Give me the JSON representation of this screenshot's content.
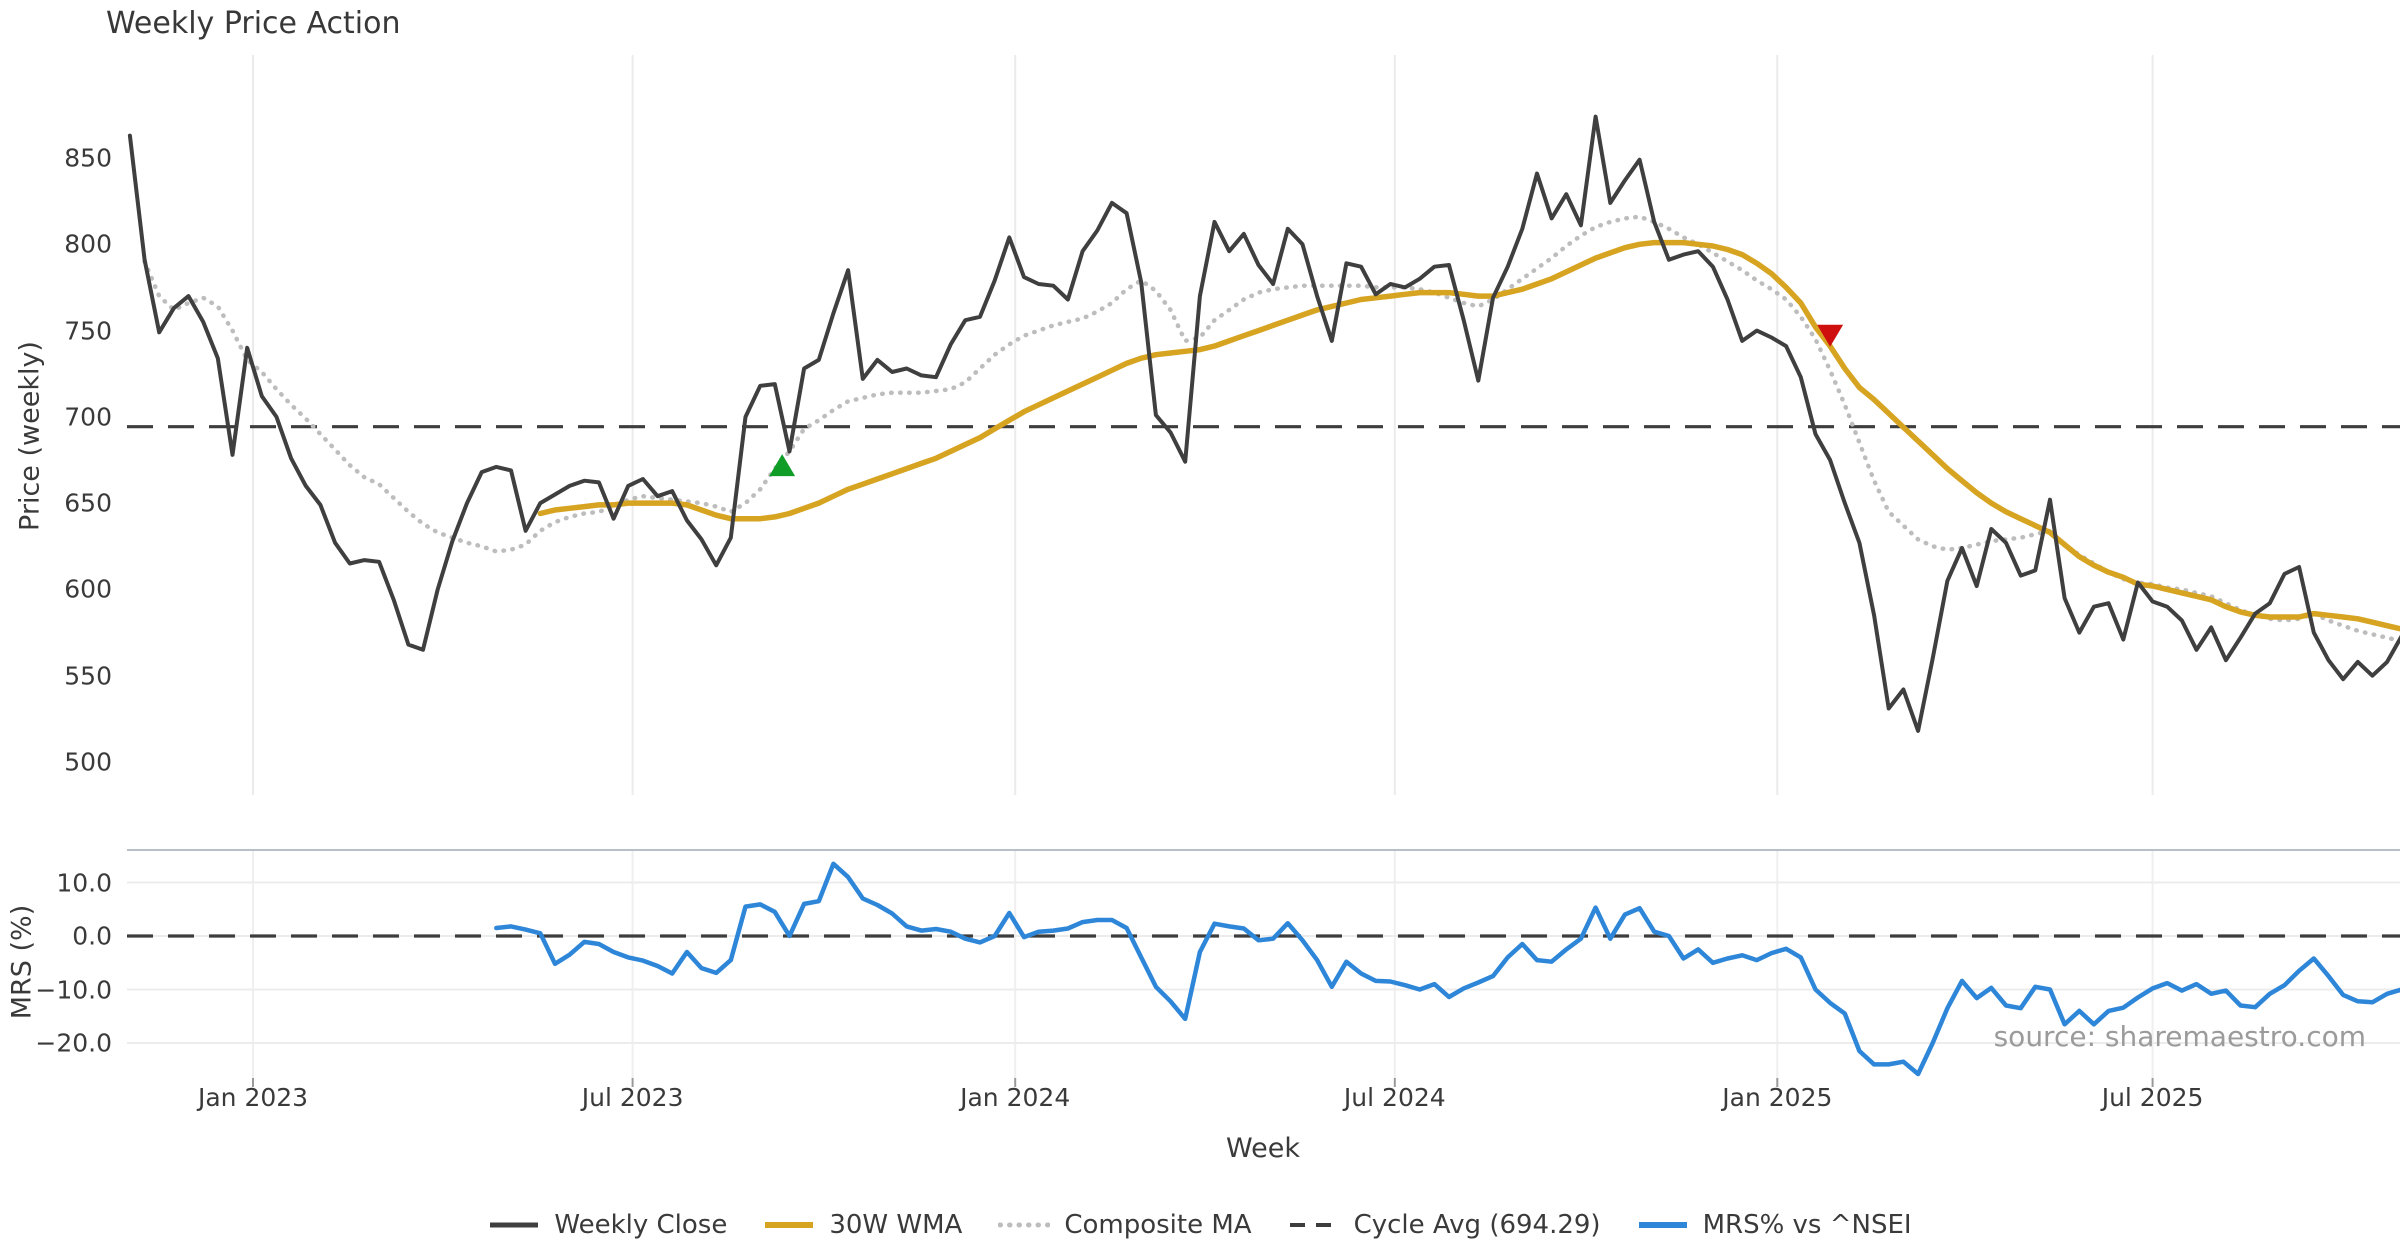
{
  "title": "Weekly Price Action",
  "source": "source: sharemaestro.com",
  "legend": {
    "items": [
      {
        "label": "Weekly Close",
        "style": "solid",
        "color": "#3f3f3f",
        "width": 5
      },
      {
        "label": "30W WMA",
        "style": "solid",
        "color": "#d7a422",
        "width": 6
      },
      {
        "label": "Composite MA",
        "style": "dotted",
        "color": "#bdbdbd",
        "width": 5
      },
      {
        "label": "Cycle Avg (694.29)",
        "style": "dashed",
        "color": "#3d3d3d",
        "width": 4
      },
      {
        "label": "MRS% vs ^NSEI",
        "style": "solid",
        "color": "#2e86d9",
        "width": 6
      }
    ]
  },
  "chart_data": {
    "type": "line",
    "x_unit": "week_index_from_2022-11-01",
    "xlabel": "Week",
    "grid": true,
    "legend_position": "bottom center",
    "x_ticks": [
      {
        "label": "Jan 2023",
        "week": 8.4
      },
      {
        "label": "Jul 2023",
        "week": 34.3
      },
      {
        "label": "Jan 2024",
        "week": 60.4
      },
      {
        "label": "Jul 2024",
        "week": 86.3
      },
      {
        "label": "Jan 2025",
        "week": 112.4
      },
      {
        "label": "Jul 2025",
        "week": 138.0
      }
    ],
    "price_panel": {
      "ylabel": "Price (weekly)",
      "yticks": [
        850,
        800,
        750,
        700,
        650,
        600,
        550,
        500
      ],
      "ylim": [
        495,
        880
      ],
      "cycle_avg": 694.29,
      "series": [
        {
          "id": "weekly_close",
          "name": "Weekly Close",
          "color": "#3f3f3f",
          "style": "solid",
          "start_week": 0,
          "values": [
            863,
            791,
            749,
            763,
            770,
            755,
            734,
            678,
            740,
            712,
            700,
            676,
            660,
            649,
            627,
            615,
            617,
            616,
            594,
            568,
            565,
            600,
            628,
            650,
            668,
            671,
            669,
            634,
            650,
            655,
            660,
            663,
            662,
            641,
            660,
            664,
            654,
            657,
            640,
            629,
            614,
            630,
            700,
            718,
            719,
            680,
            728,
            733,
            760,
            785,
            722,
            733,
            726,
            728,
            724,
            723,
            742,
            756,
            758,
            779,
            804,
            781,
            777,
            776,
            768,
            796,
            808,
            824,
            818,
            778,
            701,
            691,
            674,
            770,
            813,
            796,
            806,
            788,
            777,
            809,
            800,
            770,
            744,
            789,
            787,
            771,
            777,
            775,
            780,
            787,
            788,
            756,
            721,
            769,
            787,
            809,
            841,
            815,
            829,
            811,
            874,
            824,
            837,
            849,
            813,
            791,
            794,
            796,
            787,
            768,
            744,
            750,
            746,
            741,
            723,
            690,
            675,
            650,
            627,
            585,
            531,
            542,
            518,
            560,
            605,
            624,
            602,
            635,
            627,
            608,
            611,
            652,
            595,
            575,
            590,
            592,
            571,
            604,
            593,
            590,
            582,
            565,
            578,
            559,
            572,
            586,
            592,
            609,
            613,
            575,
            559,
            548,
            558,
            550,
            558,
            573
          ]
        },
        {
          "id": "wma30",
          "name": "30W WMA",
          "color": "#d7a422",
          "style": "solid",
          "start_week": 28,
          "values": [
            644,
            646,
            647,
            648,
            649,
            649,
            650,
            650,
            650,
            650,
            649,
            646,
            643,
            641,
            641,
            641,
            642,
            644,
            647,
            650,
            654,
            658,
            661,
            664,
            667,
            670,
            673,
            676,
            680,
            684,
            688,
            693,
            698,
            703,
            707,
            711,
            715,
            719,
            723,
            727,
            731,
            734,
            736,
            737,
            738,
            739,
            741,
            744,
            747,
            750,
            753,
            756,
            759,
            762,
            764,
            766,
            768,
            769,
            770,
            771,
            772,
            772,
            772,
            771,
            770,
            770,
            772,
            774,
            777,
            780,
            784,
            788,
            792,
            795,
            798,
            800,
            801,
            801,
            801,
            800,
            799,
            797,
            794,
            789,
            783,
            775,
            766,
            752,
            741,
            728,
            717,
            710,
            702,
            694,
            686,
            678,
            670,
            663,
            656,
            650,
            645,
            641,
            637,
            633,
            626,
            619,
            614,
            610,
            607,
            603,
            602,
            600,
            598,
            596,
            594,
            590,
            587,
            585,
            584,
            584,
            584,
            586,
            585,
            584,
            583,
            581,
            579,
            577
          ]
        },
        {
          "id": "composite_ma",
          "name": "Composite MA",
          "color": "#bdbdbd",
          "style": "dotted",
          "start_week": 1,
          "values": [
            790,
            770,
            762,
            766,
            769,
            764,
            750,
            733,
            726,
            716,
            707,
            699,
            690,
            681,
            672,
            665,
            661,
            653,
            645,
            638,
            633,
            630,
            627,
            625,
            622,
            623,
            626,
            634,
            639,
            642,
            644,
            645,
            648,
            652,
            654,
            653,
            652,
            651,
            650,
            648,
            645,
            650,
            658,
            670,
            680,
            693,
            698,
            704,
            709,
            711,
            713,
            714,
            714,
            714,
            715,
            716,
            720,
            728,
            736,
            742,
            747,
            750,
            753,
            755,
            757,
            761,
            766,
            774,
            779,
            773,
            762,
            744,
            746,
            756,
            762,
            768,
            772,
            774,
            775,
            776,
            776,
            776,
            776,
            776,
            775,
            775,
            775,
            774,
            772,
            769,
            766,
            764,
            768,
            774,
            780,
            786,
            792,
            799,
            805,
            810,
            813,
            815,
            816,
            813,
            809,
            804,
            800,
            795,
            790,
            785,
            779,
            774,
            768,
            758,
            745,
            727,
            707,
            685,
            663,
            645,
            637,
            629,
            625,
            623,
            624,
            626,
            628,
            629,
            630,
            632,
            634,
            626,
            620,
            615,
            610,
            606,
            604,
            603,
            601,
            600,
            598,
            596,
            592,
            588,
            585,
            583,
            582,
            583,
            586,
            582,
            579,
            576,
            574,
            572,
            570
          ]
        }
      ],
      "markers": [
        {
          "id": "buy-signal",
          "shape": "triangle-up",
          "color": "#0f9d28",
          "week": 44.5,
          "price": 672
        },
        {
          "id": "sell-signal",
          "shape": "triangle-down",
          "color": "#cf0e0e",
          "week": 116,
          "price": 747
        }
      ]
    },
    "mrs_panel": {
      "ylabel": "MRS (%)",
      "yticks": [
        {
          "label": "10.0",
          "value": 10
        },
        {
          "label": "0.0",
          "value": 0
        },
        {
          "label": "−10.0",
          "value": -10
        },
        {
          "label": "−20.0",
          "value": -20
        }
      ],
      "ylim": [
        -27,
        16
      ],
      "zero_line": 0.0,
      "series": [
        {
          "id": "mrs",
          "name": "MRS% vs ^NSEI",
          "color": "#2e86d9",
          "style": "solid",
          "start_week": 25,
          "values": [
            1.5,
            1.8,
            1.2,
            0.5,
            -5.2,
            -3.5,
            -1.1,
            -1.5,
            -3.0,
            -4.0,
            -4.6,
            -5.6,
            -7.0,
            -3.0,
            -6.0,
            -6.9,
            -4.5,
            5.5,
            5.9,
            4.5,
            0.0,
            6.0,
            6.5,
            13.5,
            11.0,
            7.0,
            5.8,
            4.2,
            1.8,
            1.0,
            1.3,
            0.8,
            -0.5,
            -1.2,
            0.0,
            4.3,
            -0.2,
            0.8,
            1.0,
            1.4,
            2.6,
            3.0,
            3.0,
            1.5,
            -4.0,
            -9.5,
            -12.2,
            -15.5,
            -3.0,
            2.3,
            1.8,
            1.4,
            -0.8,
            -0.5,
            2.4,
            -0.8,
            -4.5,
            -9.5,
            -4.8,
            -7.0,
            -8.4,
            -8.5,
            -9.2,
            -10.0,
            -9.0,
            -11.4,
            -9.8,
            -8.7,
            -7.5,
            -4.0,
            -1.5,
            -4.5,
            -4.8,
            -2.5,
            -0.5,
            5.3,
            -0.5,
            4.0,
            5.2,
            0.8,
            0.0,
            -4.2,
            -2.5,
            -5.0,
            -4.2,
            -3.6,
            -4.5,
            -3.2,
            -2.4,
            -4.0,
            -10.0,
            -12.5,
            -14.5,
            -21.5,
            -24.0,
            -24.0,
            -23.5,
            -25.8,
            -20.0,
            -13.5,
            -8.4,
            -11.6,
            -9.7,
            -13.0,
            -13.5,
            -9.5,
            -10.0,
            -16.5,
            -14.0,
            -16.5,
            -14.0,
            -13.4,
            -11.5,
            -9.8,
            -8.8,
            -10.2,
            -9.0,
            -10.8,
            -10.2,
            -13.0,
            -13.3,
            -10.8,
            -9.2,
            -6.5,
            -4.2,
            -7.5,
            -11.0,
            -12.2,
            -12.4,
            -10.8,
            -10.0
          ]
        }
      ]
    }
  }
}
